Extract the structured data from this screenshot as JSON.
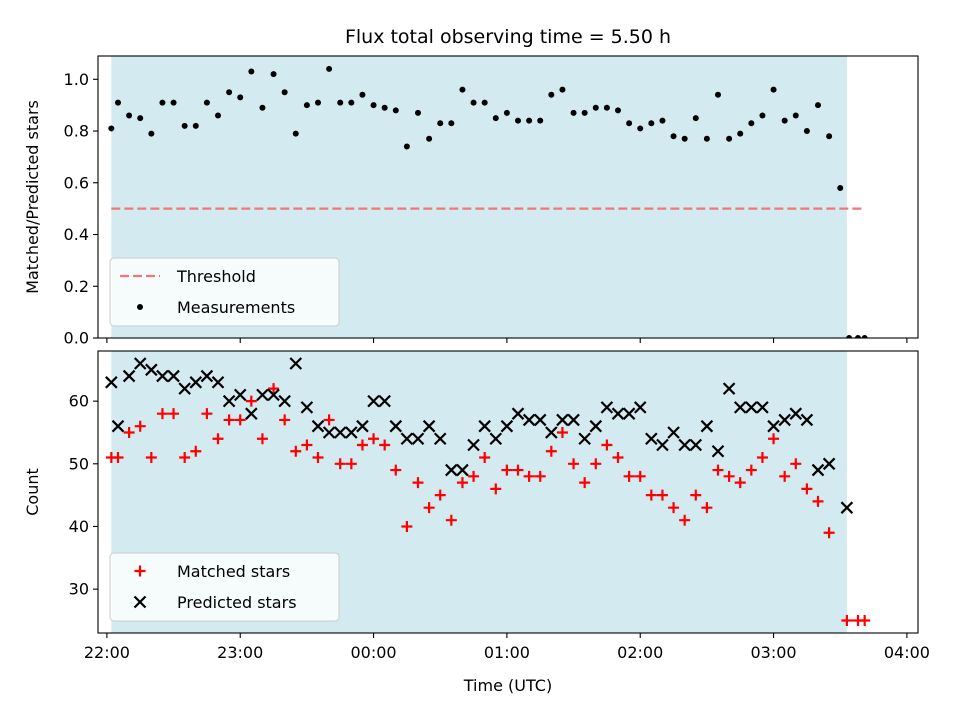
{
  "chart_data": [
    {
      "type": "scatter",
      "title": "Flux total observing time = 5.50 h",
      "ylabel": "Matched/Predicted stars",
      "xlabel": "",
      "xlim": [
        "21:56",
        "04:05"
      ],
      "ylim": [
        0,
        1.09
      ],
      "ytick_values": [
        0.0,
        0.2,
        0.4,
        0.6,
        0.8,
        1.0
      ],
      "ytick_labels": [
        "0.0",
        "0.2",
        "0.4",
        "0.6",
        "0.8",
        "1.0"
      ],
      "xtick_values": [
        "22:00",
        "23:00",
        "00:00",
        "01:00",
        "02:00",
        "03:00",
        "04:00"
      ],
      "xtick_labels": [],
      "shaded_region": {
        "x": [
          "22:02",
          "03:33"
        ],
        "color": "#d3eaf1"
      },
      "legend": {
        "placement": "lower left",
        "entries": [
          "Threshold",
          "Measurements"
        ]
      },
      "threshold": {
        "name": "Threshold",
        "y": 0.5,
        "x": [
          "22:02",
          "03:41"
        ],
        "color": "#f07878",
        "style": "dashed"
      },
      "series": [
        {
          "name": "Measurements",
          "color": "#000000",
          "marker": "dot",
          "x": [
            "22:02",
            "22:05",
            "22:10",
            "22:15",
            "22:20",
            "22:25",
            "22:30",
            "22:35",
            "22:40",
            "22:45",
            "22:50",
            "22:55",
            "23:00",
            "23:05",
            "23:10",
            "23:15",
            "23:20",
            "23:25",
            "23:30",
            "23:35",
            "23:40",
            "23:45",
            "23:50",
            "23:55",
            "00:00",
            "00:05",
            "00:10",
            "00:15",
            "00:20",
            "00:25",
            "00:30",
            "00:35",
            "00:40",
            "00:45",
            "00:50",
            "00:55",
            "01:00",
            "01:05",
            "01:10",
            "01:15",
            "01:20",
            "01:25",
            "01:30",
            "01:35",
            "01:40",
            "01:45",
            "01:50",
            "01:55",
            "02:00",
            "02:05",
            "02:10",
            "02:15",
            "02:20",
            "02:25",
            "02:30",
            "02:35",
            "02:40",
            "02:45",
            "02:50",
            "02:55",
            "03:00",
            "03:05",
            "03:10",
            "03:15",
            "03:20",
            "03:25",
            "03:30",
            "03:34",
            "03:38",
            "03:41"
          ],
          "y": [
            0.81,
            0.91,
            0.86,
            0.85,
            0.79,
            0.91,
            0.91,
            0.82,
            0.82,
            0.91,
            0.86,
            0.95,
            0.93,
            1.03,
            0.89,
            1.02,
            0.95,
            0.79,
            0.9,
            0.91,
            1.04,
            0.91,
            0.91,
            0.94,
            0.9,
            0.89,
            0.88,
            0.74,
            0.87,
            0.77,
            0.83,
            0.83,
            0.96,
            0.91,
            0.91,
            0.85,
            0.87,
            0.84,
            0.84,
            0.84,
            0.94,
            0.96,
            0.87,
            0.87,
            0.89,
            0.89,
            0.88,
            0.83,
            0.81,
            0.83,
            0.84,
            0.78,
            0.77,
            0.85,
            0.77,
            0.94,
            0.77,
            0.79,
            0.83,
            0.86,
            0.96,
            0.84,
            0.86,
            0.8,
            0.9,
            0.78,
            0.58,
            0.0,
            0.0,
            0.0
          ]
        }
      ]
    },
    {
      "type": "scatter",
      "title": "",
      "ylabel": "Count",
      "xlabel": "Time (UTC)",
      "xlim": [
        "21:56",
        "04:05"
      ],
      "ylim": [
        23,
        68
      ],
      "ytick_values": [
        30,
        40,
        50,
        60
      ],
      "ytick_labels": [
        "30",
        "40",
        "50",
        "60"
      ],
      "xtick_values": [
        "22:00",
        "23:00",
        "00:00",
        "01:00",
        "02:00",
        "03:00",
        "04:00"
      ],
      "xtick_labels": [
        "22:00",
        "23:00",
        "00:00",
        "01:00",
        "02:00",
        "03:00",
        "04:00"
      ],
      "shaded_region": {
        "x": [
          "22:02",
          "03:33"
        ],
        "color": "#d3eaf1"
      },
      "legend": {
        "placement": "lower left",
        "entries": [
          "Matched stars",
          "Predicted stars"
        ]
      },
      "series": [
        {
          "name": "Matched stars",
          "color": "#ff0000",
          "marker": "plus",
          "x": [
            "22:02",
            "22:05",
            "22:10",
            "22:15",
            "22:20",
            "22:25",
            "22:30",
            "22:35",
            "22:40",
            "22:45",
            "22:50",
            "22:55",
            "23:00",
            "23:05",
            "23:10",
            "23:15",
            "23:20",
            "23:25",
            "23:30",
            "23:35",
            "23:40",
            "23:45",
            "23:50",
            "23:55",
            "00:00",
            "00:05",
            "00:10",
            "00:15",
            "00:20",
            "00:25",
            "00:30",
            "00:35",
            "00:40",
            "00:45",
            "00:50",
            "00:55",
            "01:00",
            "01:05",
            "01:10",
            "01:15",
            "01:20",
            "01:25",
            "01:30",
            "01:35",
            "01:40",
            "01:45",
            "01:50",
            "01:55",
            "02:00",
            "02:05",
            "02:10",
            "02:15",
            "02:20",
            "02:25",
            "02:30",
            "02:35",
            "02:40",
            "02:45",
            "02:50",
            "02:55",
            "03:00",
            "03:05",
            "03:10",
            "03:15",
            "03:20",
            "03:25",
            "03:33",
            "03:38",
            "03:41"
          ],
          "y": [
            51,
            51,
            55,
            56,
            51,
            58,
            58,
            51,
            52,
            58,
            54,
            57,
            57,
            60,
            54,
            62,
            57,
            52,
            53,
            51,
            57,
            50,
            50,
            53,
            54,
            53,
            49,
            40,
            47,
            43,
            45,
            41,
            47,
            48,
            51,
            46,
            49,
            49,
            48,
            48,
            52,
            55,
            50,
            47,
            50,
            53,
            51,
            48,
            48,
            45,
            45,
            43,
            41,
            45,
            43,
            49,
            48,
            47,
            49,
            51,
            54,
            48,
            50,
            46,
            44,
            39,
            25,
            25,
            25
          ]
        },
        {
          "name": "Predicted stars",
          "color": "#000000",
          "marker": "x",
          "x": [
            "22:02",
            "22:05",
            "22:10",
            "22:15",
            "22:20",
            "22:25",
            "22:30",
            "22:35",
            "22:40",
            "22:45",
            "22:50",
            "22:55",
            "23:00",
            "23:05",
            "23:10",
            "23:15",
            "23:20",
            "23:25",
            "23:30",
            "23:35",
            "23:40",
            "23:45",
            "23:50",
            "23:55",
            "00:00",
            "00:05",
            "00:10",
            "00:15",
            "00:20",
            "00:25",
            "00:30",
            "00:35",
            "00:40",
            "00:45",
            "00:50",
            "00:55",
            "01:00",
            "01:05",
            "01:10",
            "01:15",
            "01:20",
            "01:25",
            "01:30",
            "01:35",
            "01:40",
            "01:45",
            "01:50",
            "01:55",
            "02:00",
            "02:05",
            "02:10",
            "02:15",
            "02:20",
            "02:25",
            "02:30",
            "02:35",
            "02:40",
            "02:45",
            "02:50",
            "02:55",
            "03:00",
            "03:05",
            "03:10",
            "03:15",
            "03:20",
            "03:25",
            "03:33"
          ],
          "y": [
            63,
            56,
            64,
            66,
            65,
            64,
            64,
            62,
            63,
            64,
            63,
            60,
            61,
            58,
            61,
            61,
            60,
            66,
            59,
            56,
            55,
            55,
            55,
            56,
            60,
            60,
            56,
            54,
            54,
            56,
            54,
            49,
            49,
            53,
            56,
            54,
            56,
            58,
            57,
            57,
            55,
            57,
            57,
            54,
            56,
            59,
            58,
            58,
            59,
            54,
            53,
            55,
            53,
            53,
            56,
            52,
            62,
            59,
            59,
            59,
            56,
            57,
            58,
            57,
            49,
            50,
            43
          ]
        }
      ]
    }
  ]
}
